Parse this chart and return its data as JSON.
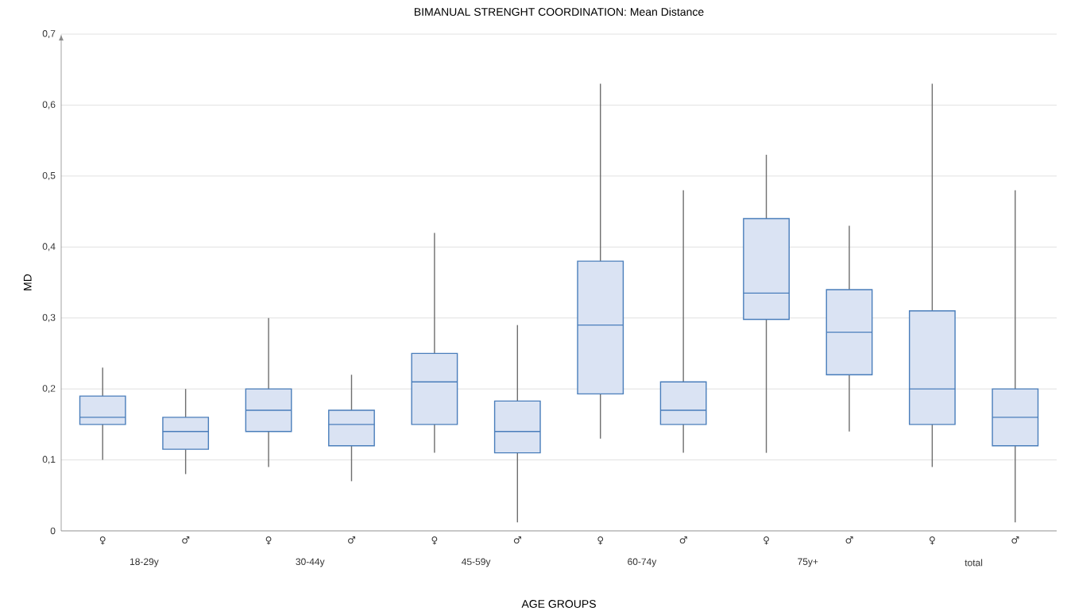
{
  "chart_data": {
    "type": "box",
    "title": "BIMANUAL STRENGHT COORDINATION: Mean Distance",
    "xlabel": "AGE GROUPS",
    "ylabel": "MD",
    "categories": [
      "♀",
      "♂",
      "♀",
      "♂",
      "♀",
      "♂",
      "♀",
      "♂",
      "♀",
      "♂",
      "♀",
      "♂"
    ],
    "annotations": [
      "18-29y",
      "30-44y",
      "45-59y",
      "60-74y",
      "75y+",
      "total"
    ],
    "color": "#dae3f3",
    "boxes": [
      {
        "low": 0.1,
        "q1": 0.15,
        "median": 0.16,
        "q3": 0.19,
        "high": 0.23
      },
      {
        "low": 0.08,
        "q1": 0.115,
        "median": 0.14,
        "q3": 0.16,
        "high": 0.2
      },
      {
        "low": 0.09,
        "q1": 0.14,
        "median": 0.17,
        "q3": 0.2,
        "high": 0.3
      },
      {
        "low": 0.07,
        "q1": 0.12,
        "median": 0.15,
        "q3": 0.17,
        "high": 0.22
      },
      {
        "low": 0.11,
        "q1": 0.15,
        "median": 0.21,
        "q3": 0.25,
        "high": 0.42
      },
      {
        "low": 0.012,
        "q1": 0.11,
        "median": 0.14,
        "q3": 0.183,
        "high": 0.29
      },
      {
        "low": 0.13,
        "q1": 0.193,
        "median": 0.29,
        "q3": 0.38,
        "high": 0.63
      },
      {
        "low": 0.11,
        "q1": 0.15,
        "median": 0.17,
        "q3": 0.21,
        "high": 0.48
      },
      {
        "low": 0.11,
        "q1": 0.298,
        "median": 0.335,
        "q3": 0.44,
        "high": 0.53
      },
      {
        "low": 0.14,
        "q1": 0.22,
        "median": 0.28,
        "q3": 0.34,
        "high": 0.43
      },
      {
        "low": 0.09,
        "q1": 0.15,
        "median": 0.2,
        "q3": 0.31,
        "high": 0.63
      },
      {
        "low": 0.012,
        "q1": 0.12,
        "median": 0.16,
        "q3": 0.2,
        "high": 0.48
      }
    ],
    "ylim": [
      0,
      0.7
    ],
    "yticks": [
      {
        "value": 0,
        "label": "0"
      },
      {
        "value": 0.1,
        "label": "0,1"
      },
      {
        "value": 0.2,
        "label": "0,2"
      },
      {
        "value": 0.3,
        "label": "0,3"
      },
      {
        "value": 0.4,
        "label": "0,4"
      },
      {
        "value": 0.5,
        "label": "0,5"
      },
      {
        "value": 0.6,
        "label": "0,6"
      },
      {
        "value": 0.7,
        "label": "0,7"
      }
    ],
    "grid": "y"
  }
}
